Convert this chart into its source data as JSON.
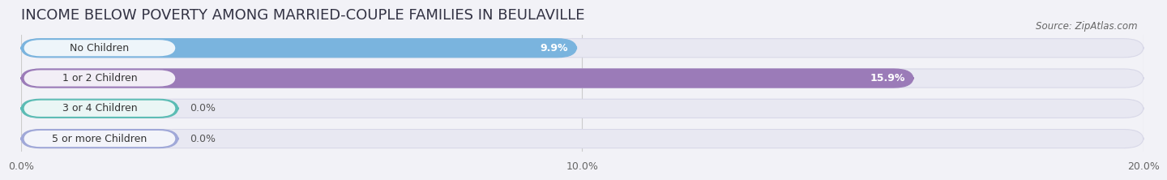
{
  "title": "INCOME BELOW POVERTY AMONG MARRIED-COUPLE FAMILIES IN BEULAVILLE",
  "source": "Source: ZipAtlas.com",
  "categories": [
    "No Children",
    "1 or 2 Children",
    "3 or 4 Children",
    "5 or more Children"
  ],
  "values": [
    9.9,
    15.9,
    0.0,
    0.0
  ],
  "bar_colors": [
    "#7ab4de",
    "#9b7bb8",
    "#5bbcb4",
    "#a0a8d8"
  ],
  "xlim": [
    0,
    20.0
  ],
  "xticks": [
    0.0,
    10.0,
    20.0
  ],
  "xtick_labels": [
    "0.0%",
    "10.0%",
    "20.0%"
  ],
  "background_color": "#f2f2f7",
  "bar_bg_color": "#e8e8f2",
  "bar_bg_edge_color": "#d8d8e8",
  "title_fontsize": 13,
  "label_fontsize": 9,
  "value_fontsize": 9,
  "source_fontsize": 8.5,
  "value_inside_color": "#ffffff",
  "value_outside_color": "#555555",
  "label_text_color": "#333333"
}
